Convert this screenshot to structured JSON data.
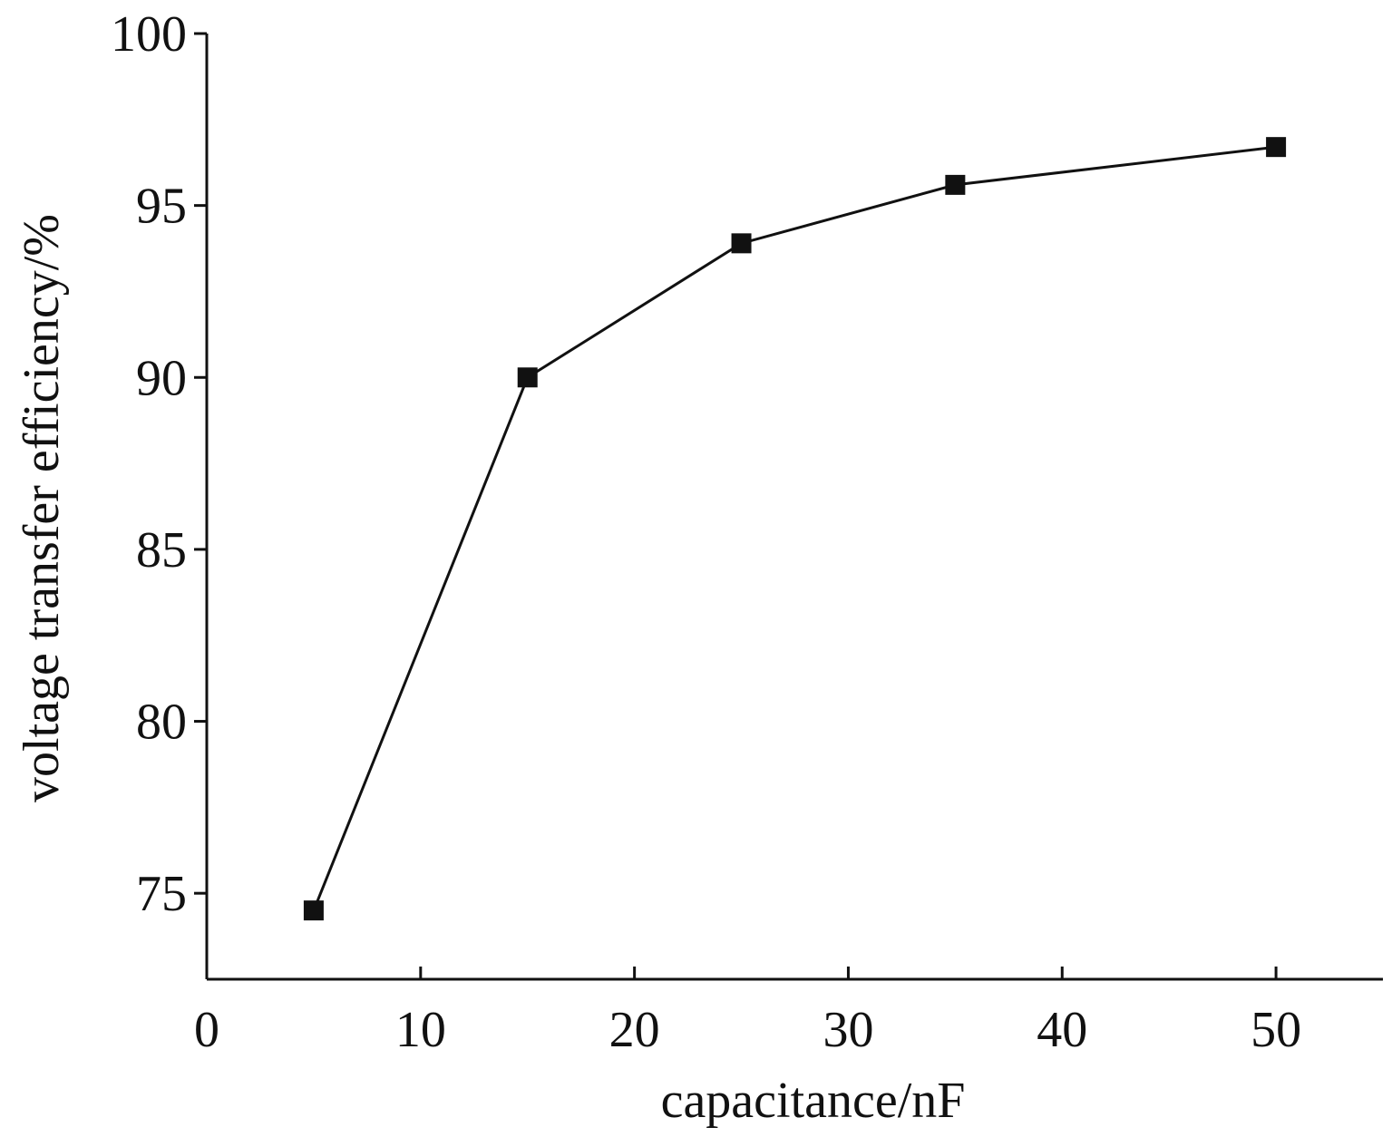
{
  "chart_data": {
    "type": "line",
    "title": "",
    "xlabel": "capacitance/nF",
    "ylabel": "voltage transfer efficiency/%",
    "xlim": [
      0,
      55
    ],
    "ylim": [
      72.5,
      100
    ],
    "x_ticks": [
      0,
      10,
      20,
      30,
      40,
      50
    ],
    "y_ticks": [
      75,
      80,
      85,
      90,
      95,
      100
    ],
    "grid": false,
    "series": [
      {
        "x": [
          5,
          15,
          25,
          35,
          50
        ],
        "values": [
          74.5,
          90.0,
          93.9,
          95.6,
          96.7
        ],
        "marker": "square"
      }
    ]
  },
  "colors": {
    "line": "#111111",
    "marker": "#111111",
    "axis": "#111111",
    "background": "#ffffff"
  }
}
